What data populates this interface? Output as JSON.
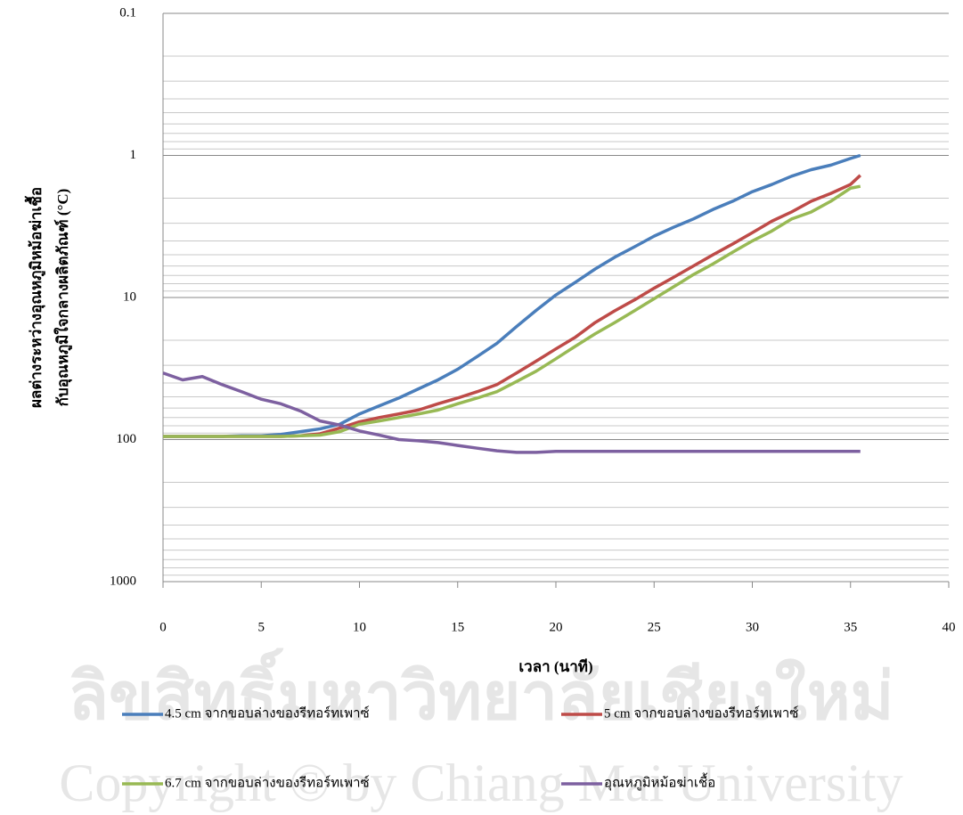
{
  "chart_data": {
    "type": "line",
    "y_axis_label_lines": [
      "ผลต่างระหว่างอุณหภูมิหม้อฆ่าเชื้อ",
      "กับอุณหภูมิใจกลางผลิตภัณฑ์  (°C)"
    ],
    "x_axis_label": "เวลา (นาที)",
    "x": [
      0,
      1,
      2,
      3,
      4,
      5,
      6,
      7,
      8,
      9,
      10,
      11,
      12,
      13,
      14,
      15,
      16,
      17,
      18,
      19,
      20,
      21,
      22,
      23,
      24,
      25,
      26,
      27,
      28,
      29,
      30,
      31,
      32,
      33,
      34,
      35,
      35.5
    ],
    "series": [
      {
        "name": "4.5 cm จากขอบล่างของรีทอร์ทเพาซ์",
        "color": "#4a7ebb",
        "values": [
          95,
          95,
          95,
          95,
          94,
          94,
          92,
          88,
          84,
          78,
          66,
          58,
          51,
          44,
          38,
          32,
          26,
          21,
          16,
          12.3,
          9.6,
          7.8,
          6.3,
          5.2,
          4.4,
          3.7,
          3.2,
          2.8,
          2.4,
          2.1,
          1.8,
          1.6,
          1.4,
          1.26,
          1.17,
          1.05,
          1.0
        ]
      },
      {
        "name": "5 cm จากขอบล่างของรีทอร์ทเพาซ์",
        "color": "#be4b48",
        "values": [
          95,
          95,
          95,
          95,
          95,
          95,
          95,
          94,
          91,
          83,
          75,
          70,
          66,
          62,
          56,
          51,
          46,
          41,
          34,
          28,
          23,
          19,
          15,
          12.4,
          10.4,
          8.6,
          7.2,
          6,
          5,
          4.2,
          3.5,
          2.9,
          2.5,
          2.1,
          1.85,
          1.6,
          1.38
        ]
      },
      {
        "name": "6.7 cm จากขอบล่างของรีทอร์ทเพาซ์",
        "color": "#98b954",
        "values": [
          95,
          95,
          95,
          95,
          95,
          95,
          95,
          94,
          93,
          88,
          78,
          74,
          70,
          66,
          62,
          56,
          51,
          46,
          39,
          33,
          27,
          22,
          18,
          15,
          12.4,
          10.2,
          8.4,
          6.9,
          5.8,
          4.8,
          4,
          3.4,
          2.8,
          2.5,
          2.1,
          1.7,
          1.65
        ]
      },
      {
        "name": "อุณหภูมิหม้อฆ่าเชื้อ",
        "color": "#7d60a0",
        "values": [
          34,
          38,
          36,
          41,
          46,
          52,
          56,
          63,
          74,
          79,
          87,
          93,
          100,
          102,
          105,
          110,
          115,
          120,
          123,
          123,
          121,
          121,
          121,
          121,
          121,
          121,
          121,
          121,
          121,
          121,
          121,
          121,
          121,
          121,
          121,
          121,
          121
        ]
      }
    ],
    "xlim": [
      0,
      40
    ],
    "xticks": [
      0,
      5,
      10,
      15,
      20,
      25,
      30,
      35,
      40
    ],
    "ylim": [
      0.1,
      1000
    ],
    "yticks": [
      0.1,
      1,
      10,
      100,
      1000
    ],
    "log_scale": true,
    "y_inverted": true,
    "grid": true,
    "minor_grid": true,
    "legend": "bottom"
  },
  "watermark_lines": [
    "ลิขสิทธิ์มหาวิทยาลัยเชียงใหม่",
    "Copyright © by Chiang Mai University"
  ]
}
